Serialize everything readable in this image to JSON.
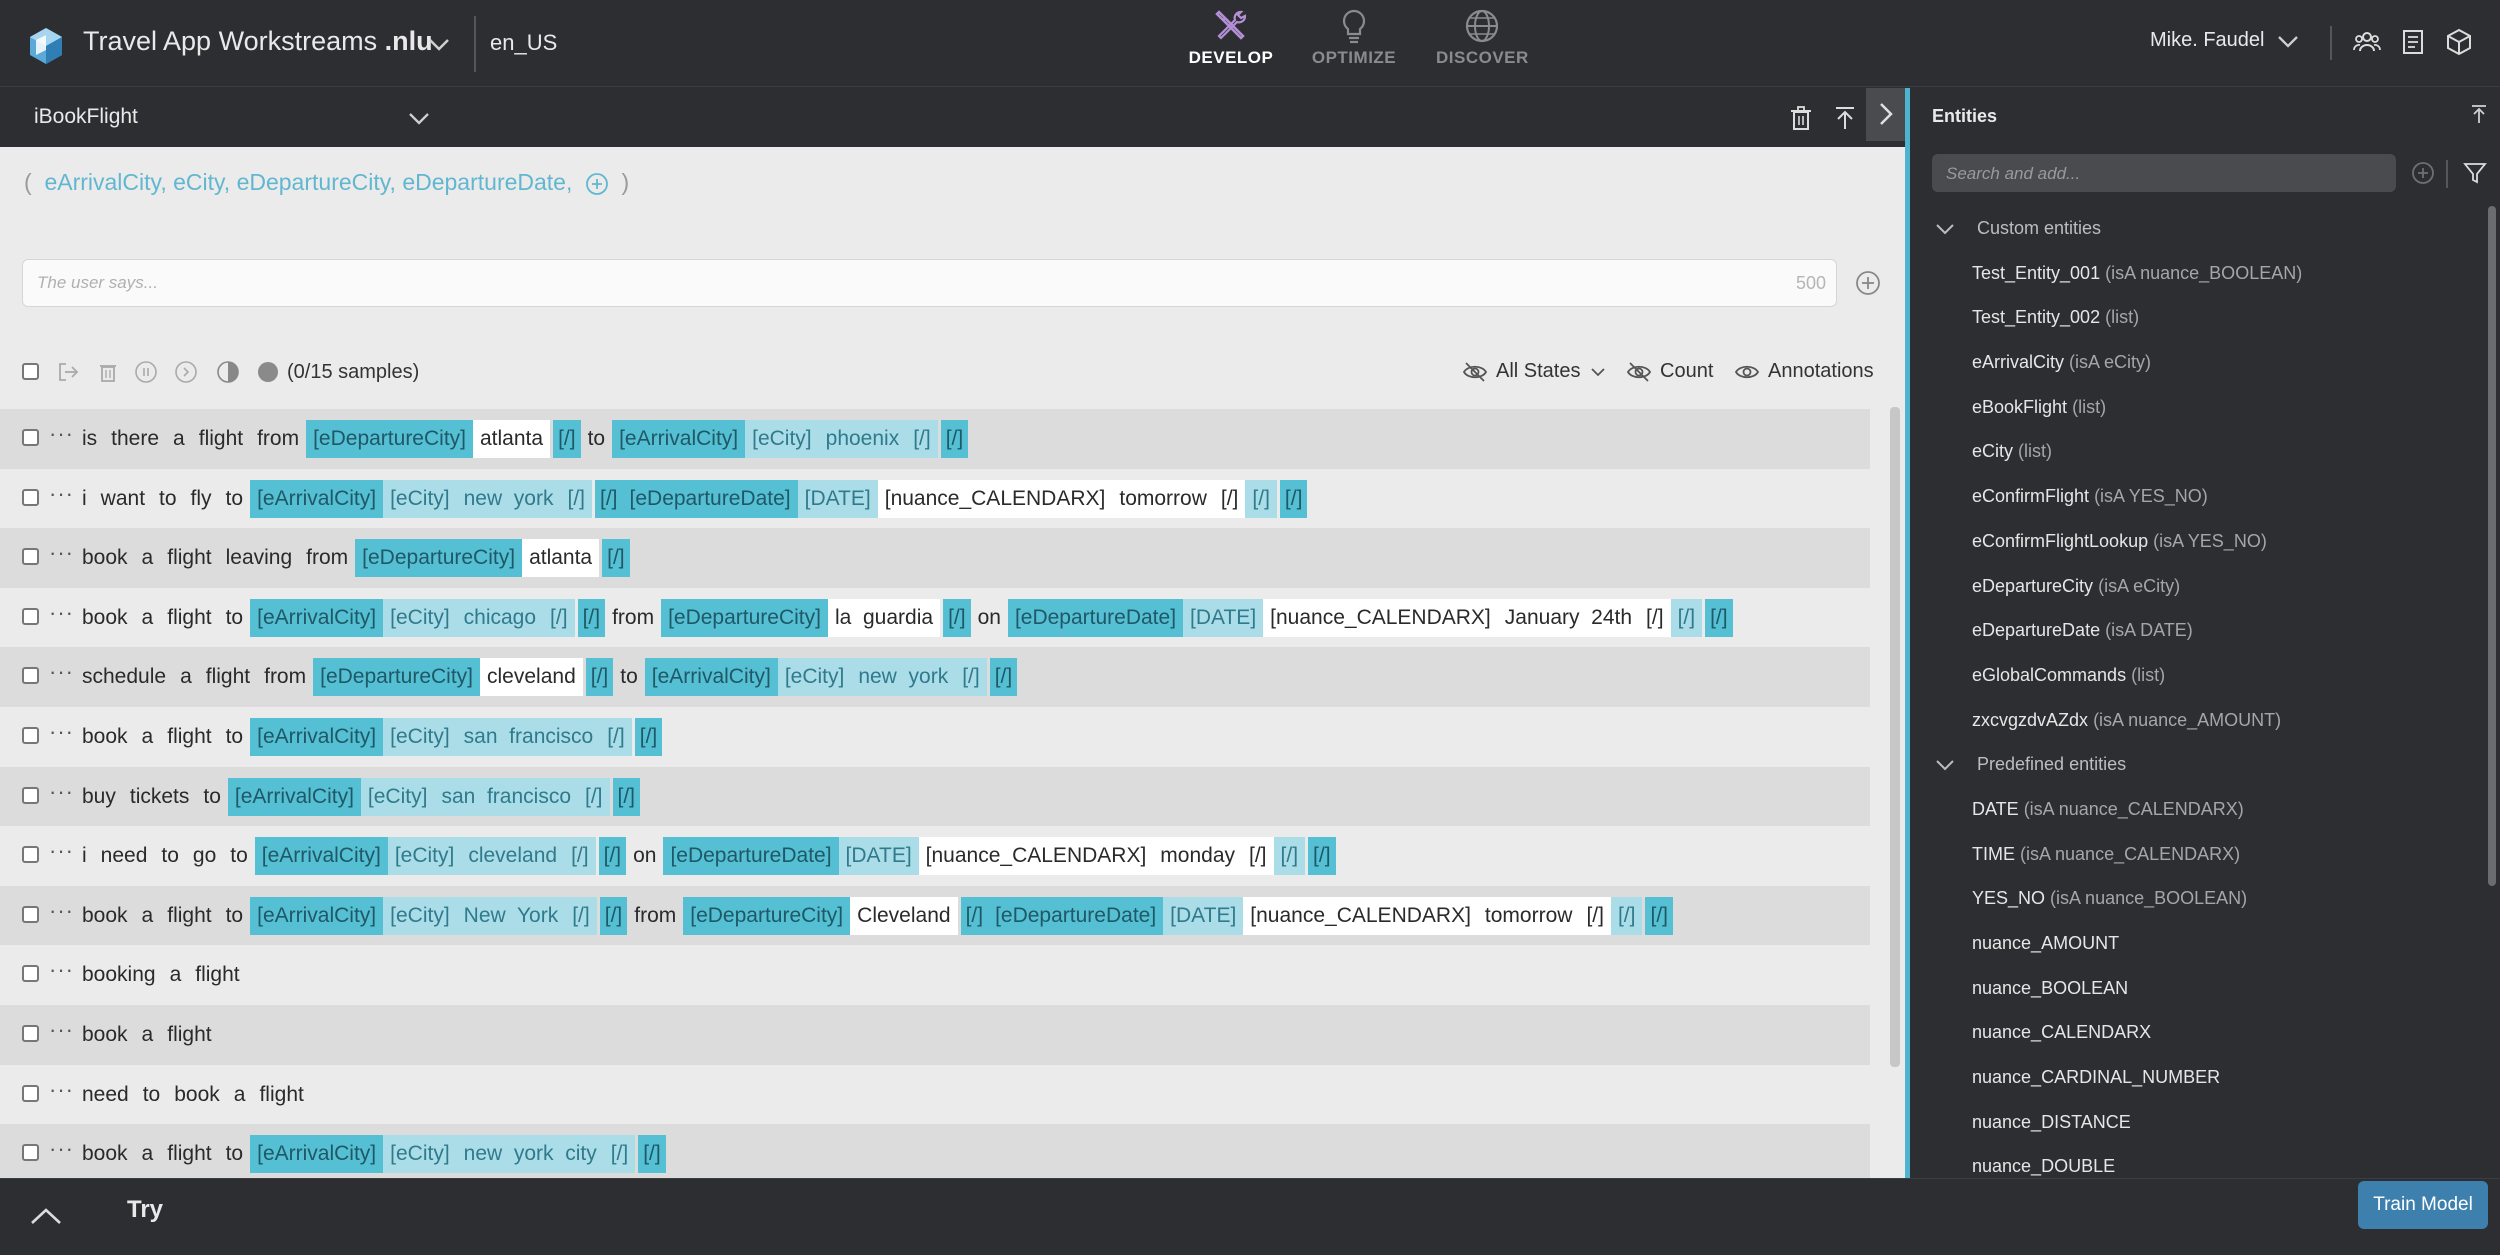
{
  "header": {
    "app_title": "Travel App Workstreams",
    "app_ext": ".nlu",
    "locale": "en_US",
    "nav": [
      {
        "label": "DEVELOP",
        "icon": "tools-icon",
        "active": true
      },
      {
        "label": "OPTIMIZE",
        "icon": "lightbulb-icon",
        "active": false
      },
      {
        "label": "DISCOVER",
        "icon": "globe-icon",
        "active": false
      }
    ],
    "user_name": "Mike. Faudel",
    "right_icons": [
      "team-icon",
      "book-icon",
      "cube-icon"
    ]
  },
  "intent": {
    "name": "iBookFlight",
    "entity_set": "eArrivalCity, eCity, eDepartureCity, eDepartureDate,"
  },
  "utterance_input": {
    "placeholder": "The user says...",
    "char_limit": "500"
  },
  "toolbar": {
    "sample_count": "(0/15 samples)",
    "filters": {
      "states": "All States",
      "count": "Count",
      "annotations": "Annotations"
    }
  },
  "samples": [
    [
      {
        "t": "is"
      },
      {
        "t": "there"
      },
      {
        "t": "a"
      },
      {
        "t": "flight"
      },
      {
        "t": "from"
      },
      {
        "t": "[eDepartureCity]",
        "k": "ent"
      },
      {
        "t": "atlanta",
        "k": "val"
      },
      {
        "t": "[/]",
        "k": "end"
      },
      {
        "t": "to"
      },
      {
        "t": "[eArrivalCity]",
        "k": "ent"
      },
      {
        "t": "[eCity]",
        "k": "sub"
      },
      {
        "t": "phoenix",
        "k": "sub"
      },
      {
        "t": "[/]",
        "k": "sub"
      },
      {
        "t": "[/]",
        "k": "end"
      }
    ],
    [
      {
        "t": "i"
      },
      {
        "t": "want"
      },
      {
        "t": "to"
      },
      {
        "t": "fly"
      },
      {
        "t": "to"
      },
      {
        "t": "[eArrivalCity]",
        "k": "ent"
      },
      {
        "t": "[eCity]",
        "k": "sub"
      },
      {
        "t": "new  york",
        "k": "sub"
      },
      {
        "t": "[/]",
        "k": "sub"
      },
      {
        "t": "[/]",
        "k": "end"
      },
      {
        "t": "[eDepartureDate]",
        "k": "ent"
      },
      {
        "t": "[DATE]",
        "k": "sub"
      },
      {
        "t": "[nuance_CALENDARX]",
        "k": "val"
      },
      {
        "t": "tomorrow",
        "k": "val"
      },
      {
        "t": "[/]",
        "k": "val"
      },
      {
        "t": "[/]",
        "k": "sub"
      },
      {
        "t": "[/]",
        "k": "end"
      }
    ],
    [
      {
        "t": "book"
      },
      {
        "t": "a"
      },
      {
        "t": "flight"
      },
      {
        "t": "leaving"
      },
      {
        "t": "from"
      },
      {
        "t": "[eDepartureCity]",
        "k": "ent"
      },
      {
        "t": "atlanta",
        "k": "val"
      },
      {
        "t": "[/]",
        "k": "end"
      }
    ],
    [
      {
        "t": "book"
      },
      {
        "t": "a"
      },
      {
        "t": "flight"
      },
      {
        "t": "to"
      },
      {
        "t": "[eArrivalCity]",
        "k": "ent"
      },
      {
        "t": "[eCity]",
        "k": "sub"
      },
      {
        "t": "chicago",
        "k": "sub"
      },
      {
        "t": "[/]",
        "k": "sub"
      },
      {
        "t": "[/]",
        "k": "end"
      },
      {
        "t": "from"
      },
      {
        "t": "[eDepartureCity]",
        "k": "ent"
      },
      {
        "t": "la  guardia",
        "k": "val"
      },
      {
        "t": "[/]",
        "k": "end"
      },
      {
        "t": "on"
      },
      {
        "t": "[eDepartureDate]",
        "k": "ent"
      },
      {
        "t": "[DATE]",
        "k": "sub"
      },
      {
        "t": "[nuance_CALENDARX]",
        "k": "val"
      },
      {
        "t": "January  24th",
        "k": "val"
      },
      {
        "t": "[/]",
        "k": "val"
      },
      {
        "t": "[/]",
        "k": "sub"
      },
      {
        "t": "[/]",
        "k": "end"
      }
    ],
    [
      {
        "t": "schedule"
      },
      {
        "t": "a"
      },
      {
        "t": "flight"
      },
      {
        "t": "from"
      },
      {
        "t": "[eDepartureCity]",
        "k": "ent"
      },
      {
        "t": "cleveland",
        "k": "val"
      },
      {
        "t": "[/]",
        "k": "end"
      },
      {
        "t": "to"
      },
      {
        "t": "[eArrivalCity]",
        "k": "ent"
      },
      {
        "t": "[eCity]",
        "k": "sub"
      },
      {
        "t": "new  york",
        "k": "sub"
      },
      {
        "t": "[/]",
        "k": "sub"
      },
      {
        "t": "[/]",
        "k": "end"
      }
    ],
    [
      {
        "t": "book"
      },
      {
        "t": "a"
      },
      {
        "t": "flight"
      },
      {
        "t": "to"
      },
      {
        "t": "[eArrivalCity]",
        "k": "ent"
      },
      {
        "t": "[eCity]",
        "k": "sub"
      },
      {
        "t": "san  francisco",
        "k": "sub"
      },
      {
        "t": "[/]",
        "k": "sub"
      },
      {
        "t": "[/]",
        "k": "end"
      }
    ],
    [
      {
        "t": "buy"
      },
      {
        "t": "tickets"
      },
      {
        "t": "to"
      },
      {
        "t": "[eArrivalCity]",
        "k": "ent"
      },
      {
        "t": "[eCity]",
        "k": "sub"
      },
      {
        "t": "san  francisco",
        "k": "sub"
      },
      {
        "t": "[/]",
        "k": "sub"
      },
      {
        "t": "[/]",
        "k": "end"
      }
    ],
    [
      {
        "t": "i"
      },
      {
        "t": "need"
      },
      {
        "t": "to"
      },
      {
        "t": "go"
      },
      {
        "t": "to"
      },
      {
        "t": "[eArrivalCity]",
        "k": "ent"
      },
      {
        "t": "[eCity]",
        "k": "sub"
      },
      {
        "t": "cleveland",
        "k": "sub"
      },
      {
        "t": "[/]",
        "k": "sub"
      },
      {
        "t": "[/]",
        "k": "end"
      },
      {
        "t": "on"
      },
      {
        "t": "[eDepartureDate]",
        "k": "ent"
      },
      {
        "t": "[DATE]",
        "k": "sub"
      },
      {
        "t": "[nuance_CALENDARX]",
        "k": "val"
      },
      {
        "t": "monday",
        "k": "val"
      },
      {
        "t": "[/]",
        "k": "val"
      },
      {
        "t": "[/]",
        "k": "sub"
      },
      {
        "t": "[/]",
        "k": "end"
      }
    ],
    [
      {
        "t": "book"
      },
      {
        "t": "a"
      },
      {
        "t": "flight"
      },
      {
        "t": "to"
      },
      {
        "t": "[eArrivalCity]",
        "k": "ent"
      },
      {
        "t": "[eCity]",
        "k": "sub"
      },
      {
        "t": "New  York",
        "k": "sub"
      },
      {
        "t": "[/]",
        "k": "sub"
      },
      {
        "t": "[/]",
        "k": "end"
      },
      {
        "t": "from"
      },
      {
        "t": "[eDepartureCity]",
        "k": "ent"
      },
      {
        "t": "Cleveland",
        "k": "val"
      },
      {
        "t": "[/]",
        "k": "end"
      },
      {
        "t": "[eDepartureDate]",
        "k": "ent"
      },
      {
        "t": "[DATE]",
        "k": "sub"
      },
      {
        "t": "[nuance_CALENDARX]",
        "k": "val"
      },
      {
        "t": "tomorrow",
        "k": "val"
      },
      {
        "t": "[/]",
        "k": "val"
      },
      {
        "t": "[/]",
        "k": "sub"
      },
      {
        "t": "[/]",
        "k": "end"
      }
    ],
    [
      {
        "t": "booking"
      },
      {
        "t": "a"
      },
      {
        "t": "flight"
      }
    ],
    [
      {
        "t": "book"
      },
      {
        "t": "a"
      },
      {
        "t": "flight"
      }
    ],
    [
      {
        "t": "need"
      },
      {
        "t": "to"
      },
      {
        "t": "book"
      },
      {
        "t": "a"
      },
      {
        "t": "flight"
      }
    ],
    [
      {
        "t": "book"
      },
      {
        "t": "a"
      },
      {
        "t": "flight"
      },
      {
        "t": "to"
      },
      {
        "t": "[eArrivalCity]",
        "k": "ent"
      },
      {
        "t": "[eCity]",
        "k": "sub"
      },
      {
        "t": "new  york  city",
        "k": "sub"
      },
      {
        "t": "[/]",
        "k": "sub"
      },
      {
        "t": "[/]",
        "k": "end"
      }
    ]
  ],
  "entities_panel": {
    "title": "Entities",
    "search_placeholder": "Search and add...",
    "groups": [
      {
        "label": "Custom entities",
        "items": [
          {
            "name": "Test_Entity_001",
            "type": "(isA nuance_BOOLEAN)"
          },
          {
            "name": "Test_Entity_002",
            "type": "(list)"
          },
          {
            "name": "eArrivalCity",
            "type": "(isA eCity)"
          },
          {
            "name": "eBookFlight",
            "type": "(list)"
          },
          {
            "name": "eCity",
            "type": "(list)"
          },
          {
            "name": "eConfirmFlight",
            "type": "(isA YES_NO)"
          },
          {
            "name": "eConfirmFlightLookup",
            "type": "(isA YES_NO)"
          },
          {
            "name": "eDepartureCity",
            "type": "(isA eCity)"
          },
          {
            "name": "eDepartureDate",
            "type": "(isA DATE)"
          },
          {
            "name": "eGlobalCommands",
            "type": "(list)"
          },
          {
            "name": "zxcvgzdvAZdx",
            "type": "(isA nuance_AMOUNT)"
          }
        ]
      },
      {
        "label": "Predefined entities",
        "items": [
          {
            "name": "DATE",
            "type": "(isA nuance_CALENDARX)"
          },
          {
            "name": "TIME",
            "type": "(isA nuance_CALENDARX)"
          },
          {
            "name": "YES_NO",
            "type": "(isA nuance_BOOLEAN)"
          },
          {
            "name": "nuance_AMOUNT",
            "type": ""
          },
          {
            "name": "nuance_BOOLEAN",
            "type": ""
          },
          {
            "name": "nuance_CALENDARX",
            "type": ""
          },
          {
            "name": "nuance_CARDINAL_NUMBER",
            "type": ""
          },
          {
            "name": "nuance_DISTANCE",
            "type": ""
          },
          {
            "name": "nuance_DOUBLE",
            "type": ""
          }
        ]
      }
    ]
  },
  "footer": {
    "try_label": "Try",
    "train_label": "Train Model"
  },
  "colors": {
    "accent": "#4db3cf",
    "entity_tag": "#55bfd3",
    "subentity_tag": "#abdde8",
    "train_button": "#3d7fad"
  }
}
